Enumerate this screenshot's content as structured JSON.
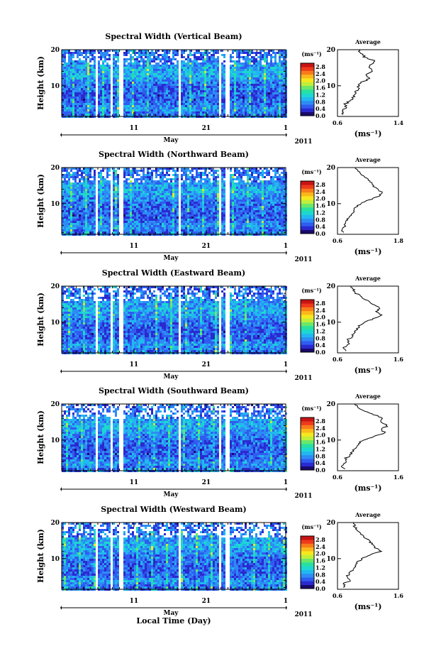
{
  "chart_data": {
    "type": "heatmap",
    "xlabel": "Local Time (Day)",
    "month_label": "May",
    "year_label": "2011",
    "x_ticks": [
      "11",
      "21",
      "1"
    ],
    "xlim": [
      1,
      32
    ],
    "colorbar": {
      "unit": "(ms⁻¹)",
      "ticks": [
        "0.0",
        "0.4",
        "0.8",
        "1.2",
        "1.6",
        "2.0",
        "2.4",
        "2.8"
      ],
      "range": [
        0.0,
        3.0
      ],
      "colors": [
        "#1a0a6b",
        "#2a2ad0",
        "#2f5cf0",
        "#2d8cf4",
        "#21b8f0",
        "#1cd8d0",
        "#28e0a0",
        "#6ae86a",
        "#c0ee3a",
        "#f5e81e",
        "#fbb81a",
        "#f87c1a",
        "#ee3a1a",
        "#c81414"
      ]
    },
    "panels": [
      {
        "title": "Spectral Width (Vertical Beam)",
        "ylabel": "Height (km)",
        "y_ticks": [
          "10",
          "20"
        ],
        "ylim": [
          1.5,
          20
        ],
        "profile": {
          "title": "Average",
          "xlabel": "(ms⁻¹)",
          "x_ticks": [
            "0.6",
            "1.4"
          ],
          "xlim": [
            0.6,
            1.4
          ],
          "heights_km": [
            2,
            3,
            4,
            5,
            6,
            7,
            8,
            9,
            10,
            11,
            12,
            13,
            14,
            15,
            16,
            17,
            18,
            19,
            20
          ],
          "values": [
            0.68,
            0.65,
            0.72,
            0.7,
            0.78,
            0.82,
            0.84,
            0.86,
            0.88,
            0.92,
            1.02,
            0.98,
            1.08,
            1.0,
            1.04,
            1.08,
            0.96,
            0.9,
            0.88
          ]
        }
      },
      {
        "title": "Spectral Width (Northward Beam)",
        "ylabel": "Height (km)",
        "y_ticks": [
          "10",
          "20"
        ],
        "ylim": [
          1.5,
          20
        ],
        "profile": {
          "title": "Average",
          "xlabel": "(ms⁻¹)",
          "x_ticks": [
            "0.6",
            "1.8"
          ],
          "xlim": [
            0.6,
            1.8
          ],
          "heights_km": [
            2,
            3,
            4,
            5,
            6,
            7,
            8,
            9,
            10,
            11,
            12,
            13,
            14,
            15,
            16,
            17,
            18,
            19,
            20
          ],
          "values": [
            0.7,
            0.68,
            0.76,
            0.74,
            0.82,
            0.88,
            0.92,
            0.96,
            1.05,
            1.22,
            1.4,
            1.5,
            1.38,
            1.3,
            1.25,
            1.18,
            1.08,
            1.0,
            0.95
          ]
        }
      },
      {
        "title": "Spectral Width (Eastward Beam)",
        "ylabel": "Height (km)",
        "y_ticks": [
          "10",
          "20"
        ],
        "ylim": [
          1.5,
          20
        ],
        "profile": {
          "title": "Average",
          "xlabel": "(ms⁻¹)",
          "x_ticks": [
            "0.6",
            "1.6"
          ],
          "xlim": [
            0.6,
            1.6
          ],
          "heights_km": [
            2,
            3,
            4,
            5,
            6,
            7,
            8,
            9,
            10,
            11,
            12,
            13,
            14,
            15,
            16,
            17,
            18,
            19,
            20
          ],
          "values": [
            0.72,
            0.7,
            0.8,
            0.76,
            0.84,
            0.88,
            0.92,
            0.96,
            1.05,
            1.2,
            1.32,
            1.25,
            1.3,
            1.18,
            1.1,
            1.0,
            0.9,
            0.86,
            0.82
          ]
        }
      },
      {
        "title": "Spectral Width (Southward Beam)",
        "ylabel": "Height (km)",
        "y_ticks": [
          "10",
          "20"
        ],
        "ylim": [
          1.5,
          20
        ],
        "profile": {
          "title": "Average",
          "xlabel": "(ms⁻¹)",
          "x_ticks": [
            "0.6",
            "1.6"
          ],
          "xlim": [
            0.6,
            1.6
          ],
          "heights_km": [
            2,
            3,
            4,
            5,
            6,
            7,
            8,
            9,
            10,
            11,
            12,
            13,
            14,
            15,
            16,
            17,
            18,
            19,
            20
          ],
          "values": [
            0.7,
            0.68,
            0.76,
            0.74,
            0.82,
            0.86,
            0.9,
            0.94,
            1.02,
            1.2,
            1.38,
            1.32,
            1.42,
            1.3,
            1.36,
            1.2,
            1.05,
            0.95,
            0.88
          ]
        }
      },
      {
        "title": "Spectral Width (Westward Beam)",
        "ylabel": "Height (km)",
        "y_ticks": [
          "10",
          "20"
        ],
        "ylim": [
          1.5,
          20
        ],
        "profile": {
          "title": "Average",
          "xlabel": "(ms⁻¹)",
          "x_ticks": [
            "0.6",
            "1.6"
          ],
          "xlim": [
            0.6,
            1.6
          ],
          "heights_km": [
            2,
            3,
            4,
            5,
            6,
            7,
            8,
            9,
            10,
            11,
            12,
            13,
            14,
            15,
            16,
            17,
            18,
            19,
            20
          ],
          "values": [
            0.72,
            0.7,
            0.82,
            0.76,
            0.8,
            0.86,
            0.9,
            0.92,
            1.0,
            1.14,
            1.3,
            1.22,
            1.18,
            1.1,
            1.05,
            0.98,
            0.92,
            0.88,
            0.86
          ]
        }
      }
    ]
  }
}
